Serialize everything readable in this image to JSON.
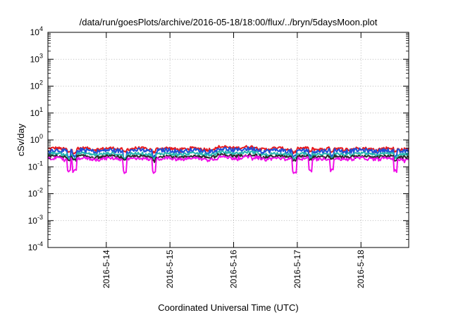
{
  "chart_data": {
    "type": "line",
    "title": "/data/run/goesPlots/archive/2016-05-18/18:00/flux/../bryn/5daysMoon.plot",
    "xlabel": "Coordinated Universal Time (UTC)",
    "ylabel": "cSv/day",
    "x_start": "2016-05-13 02:00",
    "x_end": "2016-05-18 18:00",
    "y_scale": "log",
    "ylim": [
      0.0001,
      10000
    ],
    "y_ticks": [
      {
        "base": "10",
        "exp": "-4"
      },
      {
        "base": "10",
        "exp": "-3"
      },
      {
        "base": "10",
        "exp": "-2"
      },
      {
        "base": "10",
        "exp": "-1"
      },
      {
        "base": "10",
        "exp": "0"
      },
      {
        "base": "10",
        "exp": "1"
      },
      {
        "base": "10",
        "exp": "2"
      },
      {
        "base": "10",
        "exp": "3"
      },
      {
        "base": "10",
        "exp": "4"
      }
    ],
    "x_ticks": [
      "2016-5-14",
      "2016-5-15",
      "2016-5-16",
      "2016-5-17",
      "2016-5-18"
    ],
    "grid": true,
    "series": [
      {
        "color": "#e8191c",
        "base": 0.47,
        "noise": 0.07,
        "dip_mult": 0.78
      },
      {
        "color": "#1f4fd8",
        "base": 0.4,
        "noise": 0.08,
        "dip_mult": 0.6
      },
      {
        "color": "#27b6b0",
        "base": 0.3,
        "noise": 0.04,
        "dip_mult": 0.7
      },
      {
        "color": "#2a2a2a",
        "base": 0.24,
        "noise": 0.03,
        "dip_mult": 0.75
      },
      {
        "color": "#f010e8",
        "base": 0.2,
        "noise": 0.03,
        "dip_mult": 0.35
      }
    ],
    "dips": [
      "2016-05-13 10:00",
      "2016-05-13 12:00",
      "2016-05-14 07:00",
      "2016-05-14 18:00",
      "2016-05-16 23:00",
      "2016-05-17 05:00",
      "2016-05-17 13:00",
      "2016-05-18 13:00"
    ]
  }
}
